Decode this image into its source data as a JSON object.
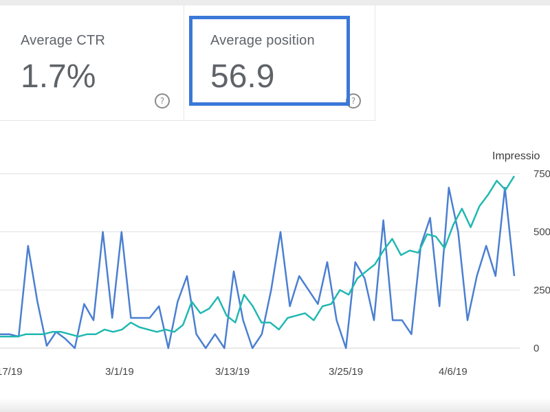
{
  "cards": {
    "ctr": {
      "label": "Average CTR",
      "value": "1.7%"
    },
    "position": {
      "label": "Average position",
      "value": "56.9"
    }
  },
  "icons": {
    "help": "help-circle-icon",
    "help_glyph": "?"
  },
  "colors": {
    "impressions_line": "#20b8b0",
    "position_line": "#4a7fd1",
    "highlight_box": "#3b78d8",
    "grid": "#e0e0e0"
  },
  "chart_data": {
    "type": "line",
    "right_axis_title": "Impressio",
    "right_ticks": [
      "750",
      "500",
      "250",
      "0"
    ],
    "x_tick_labels": [
      "17/19",
      "3/1/19",
      "3/13/19",
      "3/25/19",
      "4/6/19"
    ],
    "series": [
      {
        "name": "",
        "values": [
          60,
          60,
          50,
          440,
          200,
          10,
          70,
          40,
          0,
          190,
          120,
          500,
          130,
          500,
          130,
          130,
          130,
          180,
          0,
          200,
          310,
          60,
          0,
          60,
          0,
          330,
          120,
          0,
          60,
          250,
          500,
          180,
          310,
          250,
          190,
          370,
          120,
          0,
          370,
          300,
          120,
          550,
          120,
          120,
          60,
          440,
          560,
          180,
          690,
          500,
          120,
          310,
          440,
          310,
          690,
          310
        ]
      },
      {
        "name": "",
        "values": [
          50,
          50,
          50,
          60,
          60,
          60,
          70,
          70,
          60,
          50,
          60,
          60,
          80,
          70,
          80,
          110,
          90,
          80,
          70,
          80,
          70,
          100,
          200,
          150,
          170,
          220,
          140,
          110,
          230,
          180,
          110,
          110,
          80,
          130,
          140,
          150,
          120,
          180,
          190,
          250,
          230,
          300,
          330,
          360,
          420,
          470,
          400,
          420,
          410,
          490,
          480,
          430,
          530,
          600,
          520,
          610,
          660,
          720,
          680,
          740
        ]
      }
    ],
    "y_right_range": [
      0,
      750
    ],
    "grid": true
  }
}
